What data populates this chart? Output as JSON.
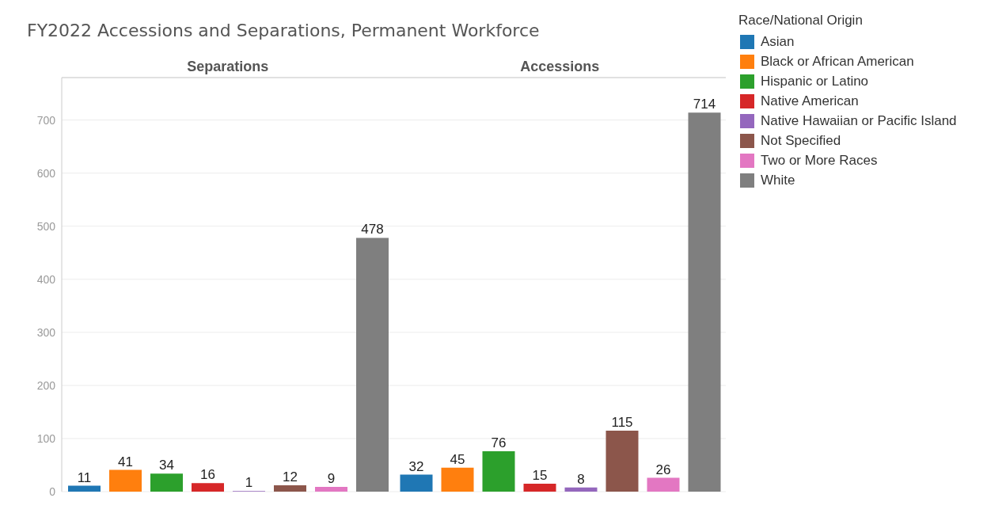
{
  "chart_data": {
    "type": "bar",
    "title": "FY2022 Accessions and Separations, Permanent Workforce",
    "legend_title": "Race/National Origin",
    "categories": [
      "Separations",
      "Accessions"
    ],
    "series": [
      {
        "name": "Asian",
        "color": "#1f77b4",
        "values": [
          11,
          32
        ]
      },
      {
        "name": "Black or African American",
        "color": "#ff7f0e",
        "values": [
          41,
          45
        ]
      },
      {
        "name": "Hispanic or Latino",
        "color": "#2ca02c",
        "values": [
          34,
          76
        ]
      },
      {
        "name": "Native American",
        "color": "#d62728",
        "values": [
          16,
          15
        ]
      },
      {
        "name": "Native Hawaiian or Pacific Island",
        "color": "#9467bd",
        "values": [
          1,
          8
        ]
      },
      {
        "name": "Not Specified",
        "color": "#8c564b",
        "values": [
          12,
          115
        ]
      },
      {
        "name": "Two or More Races",
        "color": "#e377c2",
        "values": [
          9,
          26
        ]
      },
      {
        "name": "White",
        "color": "#7f7f7f",
        "values": [
          478,
          714
        ]
      }
    ],
    "ylim": [
      0,
      780
    ],
    "yticks": [
      0,
      100,
      200,
      300,
      400,
      500,
      600,
      700
    ],
    "grid": "y",
    "legend": "top right",
    "data_labels": true
  }
}
